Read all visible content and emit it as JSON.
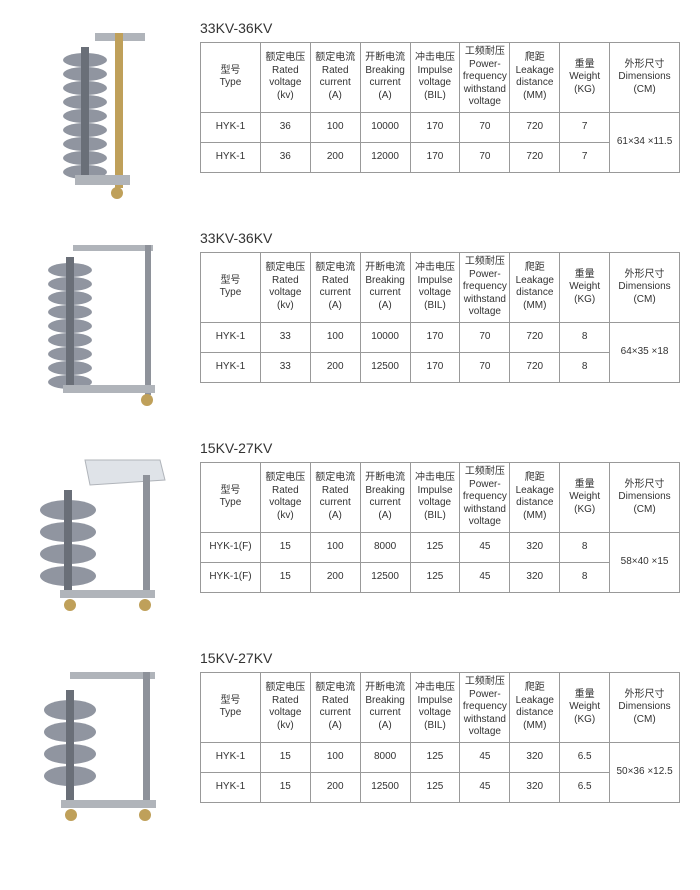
{
  "columns": [
    {
      "zh": "型号",
      "en": "Type"
    },
    {
      "zh": "额定电压",
      "en": "Rated voltage (kv)"
    },
    {
      "zh": "额定电流",
      "en": "Rated current (A)"
    },
    {
      "zh": "开断电流",
      "en": "Breaking current (A)"
    },
    {
      "zh": "冲击电压",
      "en": "Impulse voltage (BIL)"
    },
    {
      "zh": "工频耐压",
      "en": "Power-frequency withstand voltage"
    },
    {
      "zh": "爬距",
      "en": "Leakage distance (MM)"
    },
    {
      "zh": "重量",
      "en": "Weight (KG)"
    },
    {
      "zh": "外形尺寸",
      "en": "Dimensions (CM)"
    }
  ],
  "sections": [
    {
      "title": "33KV-36KV",
      "imgType": "stack-closed",
      "rows": [
        {
          "type": "HYK-1",
          "rv": "36",
          "rc": "100",
          "bc": "10000",
          "iv": "170",
          "pf": "70",
          "ld": "720",
          "wt": "7"
        },
        {
          "type": "HYK-1",
          "rv": "36",
          "rc": "200",
          "bc": "12000",
          "iv": "170",
          "pf": "70",
          "ld": "720",
          "wt": "7"
        }
      ],
      "dim": "61×34 ×11.5"
    },
    {
      "title": "33KV-36KV",
      "imgType": "stack-open",
      "rows": [
        {
          "type": "HYK-1",
          "rv": "33",
          "rc": "100",
          "bc": "10000",
          "iv": "170",
          "pf": "70",
          "ld": "720",
          "wt": "8"
        },
        {
          "type": "HYK-1",
          "rv": "33",
          "rc": "200",
          "bc": "12500",
          "iv": "170",
          "pf": "70",
          "ld": "720",
          "wt": "8"
        }
      ],
      "dim": "64×35 ×18"
    },
    {
      "title": "15KV-27KV",
      "imgType": "fins-shield",
      "rows": [
        {
          "type": "HYK-1(F)",
          "rv": "15",
          "rc": "100",
          "bc": "8000",
          "iv": "125",
          "pf": "45",
          "ld": "320",
          "wt": "8"
        },
        {
          "type": "HYK-1(F)",
          "rv": "15",
          "rc": "200",
          "bc": "12500",
          "iv": "125",
          "pf": "45",
          "ld": "320",
          "wt": "8"
        }
      ],
      "dim": "58×40 ×15"
    },
    {
      "title": "15KV-27KV",
      "imgType": "fins-noshield",
      "rows": [
        {
          "type": "HYK-1",
          "rv": "15",
          "rc": "100",
          "bc": "8000",
          "iv": "125",
          "pf": "45",
          "ld": "320",
          "wt": "6.5"
        },
        {
          "type": "HYK-1",
          "rv": "15",
          "rc": "200",
          "bc": "12500",
          "iv": "125",
          "pf": "45",
          "ld": "320",
          "wt": "6.5"
        }
      ],
      "dim": "50×36 ×12.5"
    }
  ],
  "style": {
    "titleColor": "#333333",
    "borderColor": "#999999",
    "textColor": "#333333",
    "bgColor": "#ffffff",
    "titleFontSize": 14,
    "cellFontSize": 10,
    "headerRowHeight": 64,
    "dataRowHeight": 30,
    "imgPalette": {
      "insulator": "#9095a0",
      "insulatorDark": "#6a6f78",
      "metal": "#b0b4ba",
      "brass": "#bfa05a",
      "shield": "#dfe3e8",
      "tube": "#8e929a"
    }
  }
}
